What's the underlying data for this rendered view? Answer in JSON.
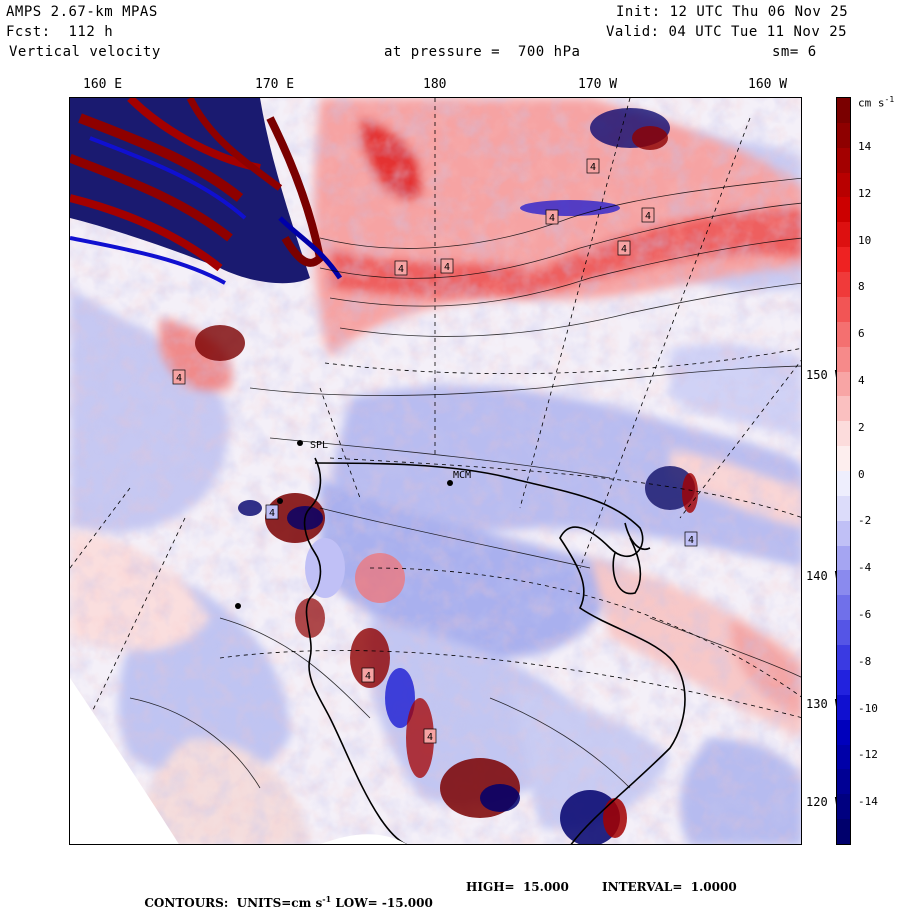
{
  "header": {
    "model": "AMPS 2.67-km MPAS",
    "forecast": "Fcst:  112 h",
    "field": "Vertical velocity",
    "init": "Init: 12 UTC Thu 06 Nov 25",
    "valid": "Valid: 04 UTC Tue 11 Nov 25",
    "pressure_label": "at pressure =  700 hPa",
    "smoothing": "sm= 6"
  },
  "lon_labels": [
    "160 E",
    "170 E",
    "180",
    "170 W",
    "160 W"
  ],
  "lat_labels": [
    "150 W",
    "140 W",
    "130 W",
    "120 W"
  ],
  "colorbar": {
    "units": "cm s",
    "units_exp": "-1",
    "tick_labels": [
      "14",
      "12",
      "10",
      "8",
      "6",
      "4",
      "2",
      "0",
      "-2",
      "-4",
      "-6",
      "-8",
      "-10",
      "-12",
      "-14"
    ],
    "colors_top_to_bottom": [
      "#7a0000",
      "#8e0000",
      "#a30000",
      "#b80000",
      "#cc0000",
      "#dd1010",
      "#ee2222",
      "#f03a3a",
      "#f25555",
      "#f47070",
      "#f68a8a",
      "#f8a5a5",
      "#fac0c0",
      "#fcdcdc",
      "#fdeeee",
      "#eeeefd",
      "#dcdcfa",
      "#c0c0f6",
      "#a5a5f2",
      "#8a8aee",
      "#7070ea",
      "#5555e6",
      "#3a3ae2",
      "#2222de",
      "#1010d0",
      "#0000bc",
      "#0000a8",
      "#000094",
      "#000080",
      "#00006c"
    ]
  },
  "footer": {
    "contours": "CONTOURS:  UNITS=cm s",
    "units_exp": "-1",
    "low": " LOW= -15.000",
    "high": "HIGH=  15.000",
    "interval": "INTERVAL=  1.0000"
  },
  "map": {
    "station_label_1": "MCM",
    "station_label_2": "SPL",
    "contour_value_labels": [
      "4",
      "4",
      "4",
      "4",
      "4",
      "4",
      "4",
      "4",
      "4",
      "4",
      "4"
    ]
  }
}
